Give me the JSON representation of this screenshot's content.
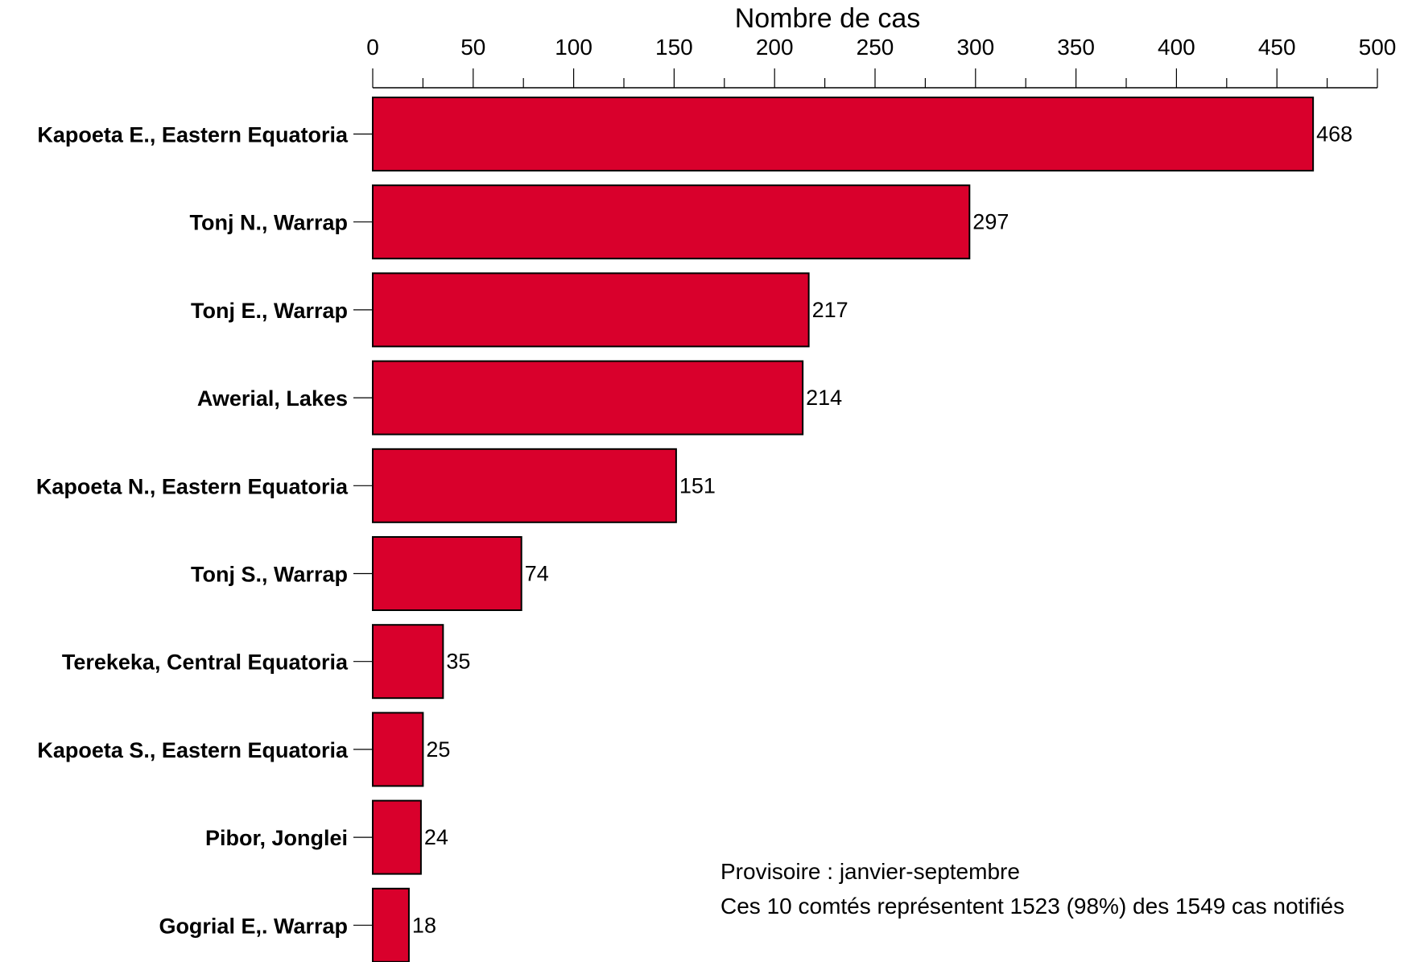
{
  "chart_data": {
    "type": "bar",
    "orientation": "horizontal",
    "xlabel": "Nombre de cas",
    "xlim": [
      0,
      500
    ],
    "x_ticks": [
      0,
      50,
      100,
      150,
      200,
      250,
      300,
      350,
      400,
      450,
      500
    ],
    "grid": false,
    "legend": "none",
    "bar_color": "#d9002c",
    "categories": [
      "Kapoeta E., Eastern Equatoria",
      "Tonj N., Warrap",
      "Tonj E., Warrap",
      "Awerial, Lakes",
      "Kapoeta N., Eastern Equatoria",
      "Tonj S., Warrap",
      "Terekeka, Central Equatoria",
      "Kapoeta S., Eastern Equatoria",
      "Pibor, Jonglei",
      "Gogrial E,. Warrap"
    ],
    "values": [
      468,
      297,
      217,
      214,
      151,
      74,
      35,
      25,
      24,
      18
    ],
    "annotations": [
      "Provisoire : janvier-septembre",
      "Ces 10 comtés représentent 1523 (98%) des 1549 cas notifiés"
    ]
  }
}
